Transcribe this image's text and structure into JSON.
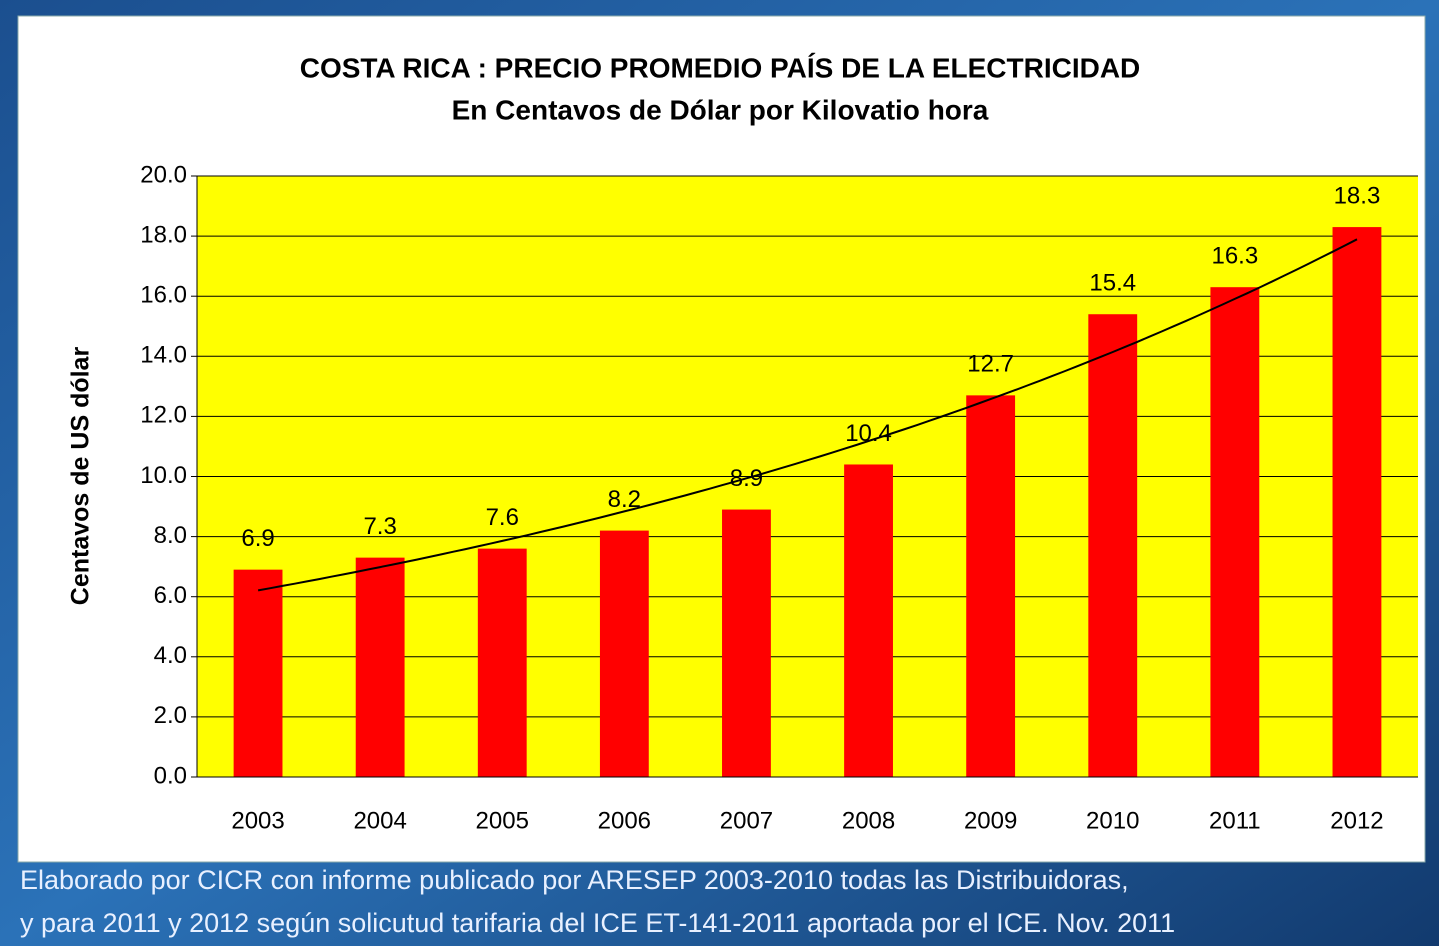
{
  "chart_data": {
    "type": "bar",
    "title": [
      "COSTA RICA : PRECIO PROMEDIO PAÍS DE LA ELECTRICIDAD",
      "En Centavos de Dólar por Kilovatio hora"
    ],
    "y_label": "Centavos de US dólar",
    "categories": [
      "2003",
      "2004",
      "2005",
      "2006",
      "2007",
      "2008",
      "2009",
      "2010",
      "2011",
      "2012"
    ],
    "values": [
      6.9,
      7.3,
      7.6,
      8.2,
      8.9,
      10.4,
      12.7,
      15.4,
      16.3,
      18.3
    ],
    "color": "#ff0000",
    "plot_background": "#ffff00",
    "trendline": "exponential",
    "ylim": [
      0,
      20
    ],
    "yticks": [
      {
        "value": 0,
        "label": "0.0"
      },
      {
        "value": 2,
        "label": "2.0"
      },
      {
        "value": 4,
        "label": "4.0"
      },
      {
        "value": 6,
        "label": "6.0"
      },
      {
        "value": 8,
        "label": "8.0"
      },
      {
        "value": 10,
        "label": "10.0"
      },
      {
        "value": 12,
        "label": "12.0"
      },
      {
        "value": 14,
        "label": "14.0"
      },
      {
        "value": 16,
        "label": "16.0"
      },
      {
        "value": 18,
        "label": "18.0"
      },
      {
        "value": 20,
        "label": "20.0"
      }
    ],
    "grid": true,
    "footnote": [
      "Elaborado por CICR con informe publicado por ARESEP 2003-2010 todas las Distribuidoras,",
      "y para 2011 y 2012 según solicutud tarifaria del ICE  ET-141-2011 aportada por el ICE. Nov. 2011"
    ]
  }
}
